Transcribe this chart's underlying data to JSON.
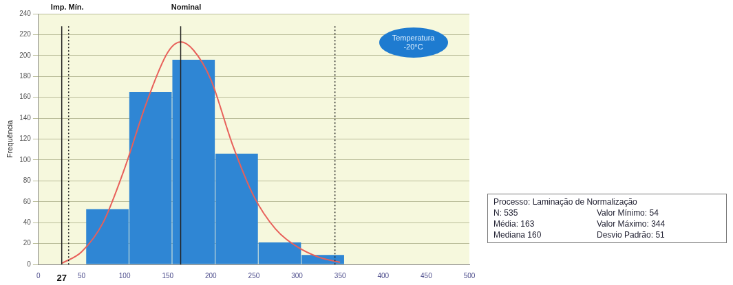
{
  "chart_data": {
    "type": "histogram",
    "ylabel": "Frequência",
    "bins": [
      55,
      105,
      155,
      205,
      255,
      305,
      355
    ],
    "values": [
      53,
      165,
      196,
      106,
      21,
      9
    ],
    "color": "#2f86d4",
    "series": [
      {
        "type": "line",
        "color": "#e8605a",
        "x": [
          27,
          50,
          75,
          100,
          125,
          150,
          165,
          180,
          200,
          225,
          250,
          275,
          300,
          325,
          350
        ],
        "values": [
          1,
          12,
          40,
          92,
          154,
          203,
          213,
          205,
          177,
          115,
          65,
          34,
          17,
          7,
          2
        ]
      }
    ],
    "xlim": [
      0,
      500
    ],
    "xticks": [
      0,
      50,
      100,
      150,
      200,
      250,
      300,
      350,
      400,
      450,
      500
    ],
    "ylim": [
      0,
      240
    ],
    "yticks": [
      0,
      20,
      40,
      60,
      80,
      100,
      120,
      140,
      160,
      180,
      200,
      220,
      240
    ],
    "grid": "y",
    "legend": false,
    "marker": "none",
    "ref_lines": [
      {
        "axis": "x",
        "value": 27,
        "label": "Imp. Mín.",
        "line_style": "solid",
        "color": "#222222"
      },
      {
        "axis": "x",
        "value": 35,
        "line_style": "dotted",
        "color": "#222222"
      },
      {
        "axis": "x",
        "value": 165,
        "label": "Nominal",
        "line_style": "solid",
        "color": "#222222"
      },
      {
        "axis": "x",
        "value": 344,
        "line_style": "dotted",
        "color": "#222222"
      }
    ],
    "annotations": [
      {
        "text": "27",
        "x": 27,
        "y": 0
      },
      "Temperatura\n-20°C",
      "Processo: Laminação de Normalização",
      "N: 535",
      "Valor Mínimo: 54",
      "Média: 163",
      "Valor Máximo: 344",
      "Mediana 160",
      "Desvio Padrão: 51"
    ]
  }
}
